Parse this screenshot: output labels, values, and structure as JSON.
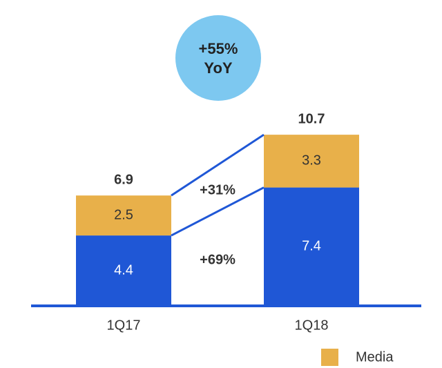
{
  "chart_data": {
    "type": "stacked_bar",
    "categories": [
      "1Q17",
      "1Q18"
    ],
    "series": [
      {
        "color": "#1f57d6",
        "label_color": "#ffffff",
        "values": [
          4.4,
          7.4
        ]
      },
      {
        "name": "Media",
        "color": "#e8b04a",
        "label_color": "#333333",
        "values": [
          2.5,
          3.3
        ]
      }
    ],
    "totals": [
      6.9,
      10.7
    ],
    "annotations": [
      "+55%",
      "YoY",
      "+31%",
      "+69%"
    ],
    "ylim": [
      0,
      12
    ]
  }
}
